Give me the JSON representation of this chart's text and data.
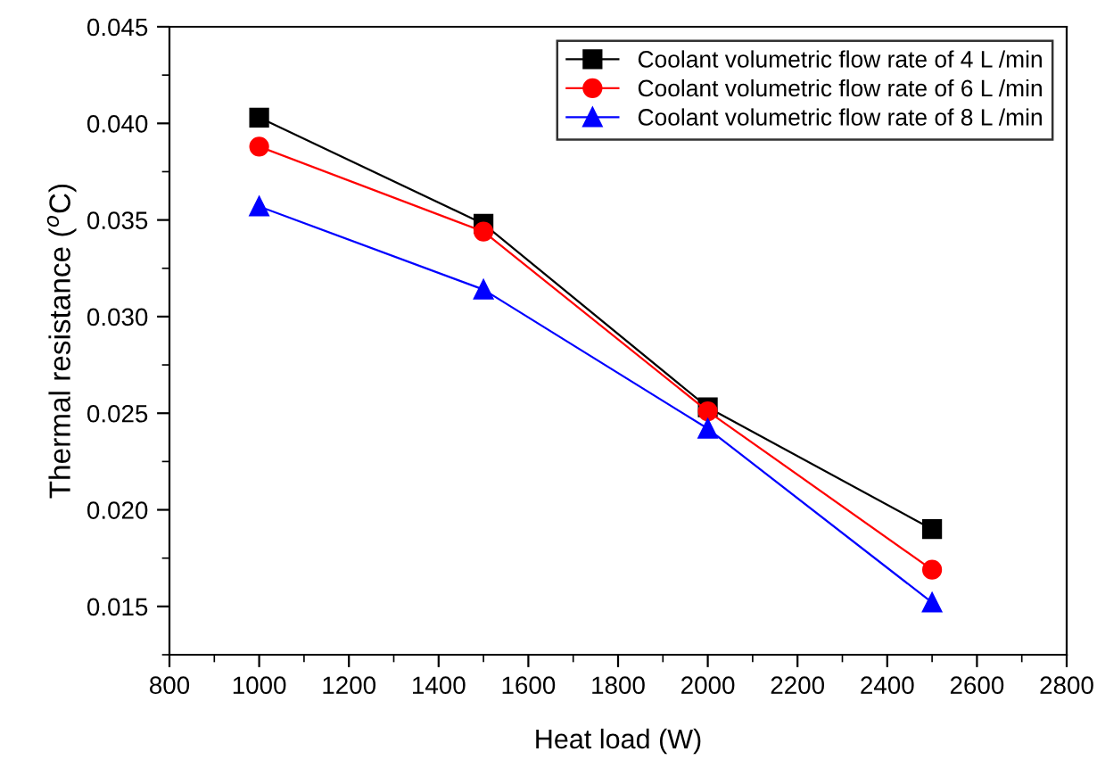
{
  "chart_data": {
    "type": "line",
    "xlabel": "Heat load (W)",
    "ylabel": "Thermal resistance ($^{o}$C)",
    "x": [
      1000,
      1500,
      2000,
      2500
    ],
    "series": [
      {
        "name": "Coolant volumetric flow rate of 4 L /min",
        "color": "#000000",
        "marker": "square",
        "values": [
          0.0403,
          0.0348,
          0.0253,
          0.019
        ]
      },
      {
        "name": "Coolant volumetric flow rate of 6 L /min",
        "color": "#ff0000",
        "marker": "circle",
        "values": [
          0.0388,
          0.0344,
          0.0251,
          0.0169
        ]
      },
      {
        "name": "Coolant volumetric flow rate of 8 L /min",
        "color": "#0000ff",
        "marker": "triangle",
        "values": [
          0.0357,
          0.0314,
          0.0242,
          0.0152
        ]
      }
    ],
    "xlim": [
      800,
      2800
    ],
    "xticks": [
      800,
      1000,
      1200,
      1400,
      1600,
      1800,
      2000,
      2200,
      2400,
      2600,
      2800
    ],
    "ylim": [
      0.0125,
      0.045
    ],
    "yticks": [
      0.015,
      {
        "value": 0.02,
        "label": "0.020"
      },
      0.025,
      {
        "value": 0.03,
        "label": "0.030"
      },
      0.035,
      {
        "value": 0.04,
        "label": "0.040"
      },
      0.045
    ],
    "grid": false,
    "legend": "top right",
    "line_style": "solid"
  }
}
